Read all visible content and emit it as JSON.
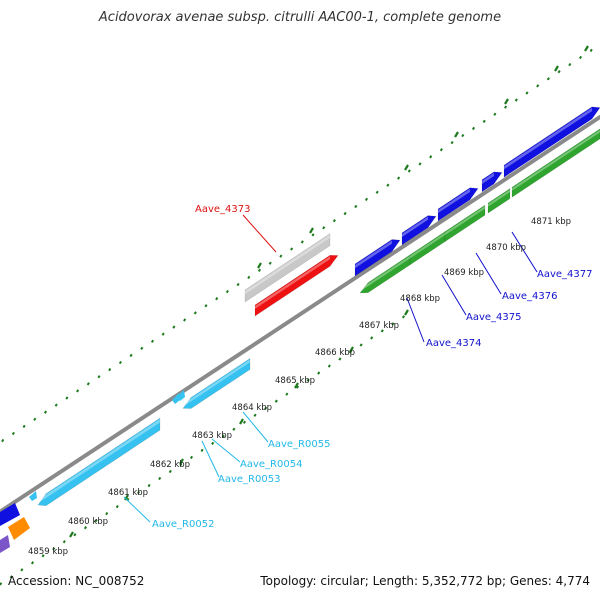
{
  "title": "Acidovorax avenae subsp. citrulli AAC00-1, complete genome",
  "footer": {
    "accession": "Accession: NC_008752",
    "topology": "Topology: circular; Length: 5,352,772 bp; Genes: 4,774"
  },
  "colors": {
    "backbone": "#8a8a8a",
    "tick": "#1e7a1e",
    "forward_cds": "#1010e0",
    "reverse_cds": "#2fa52f",
    "rna": "#36c2f0",
    "pseudo": "#c8c8c8",
    "highlight": "#ee1111",
    "other_purple": "#7b55c8",
    "other_orange": "#ff8c00"
  },
  "scale": {
    "unit": "kbp",
    "labels": [
      "4859 kbp",
      "4860 kbp",
      "4861 kbp",
      "4862 kbp",
      "4863 kbp",
      "4864 kbp",
      "4865 kbp",
      "4866 kbp",
      "4867 kbp",
      "4868 kbp",
      "4869 kbp",
      "4870 kbp",
      "4871 kbp"
    ]
  },
  "gene_labels": [
    {
      "name": "Aave_4373",
      "color": "#dd1111"
    },
    {
      "name": "Aave_4374",
      "color": "#1111cc"
    },
    {
      "name": "Aave_4375",
      "color": "#1111cc"
    },
    {
      "name": "Aave_4376",
      "color": "#1111cc"
    },
    {
      "name": "Aave_4377",
      "color": "#1111cc"
    },
    {
      "name": "Aave_R0052",
      "color": "#22b8e8"
    },
    {
      "name": "Aave_R0053",
      "color": "#22b8e8"
    },
    {
      "name": "Aave_R0054",
      "color": "#22b8e8"
    },
    {
      "name": "Aave_R0055",
      "color": "#22b8e8"
    }
  ]
}
